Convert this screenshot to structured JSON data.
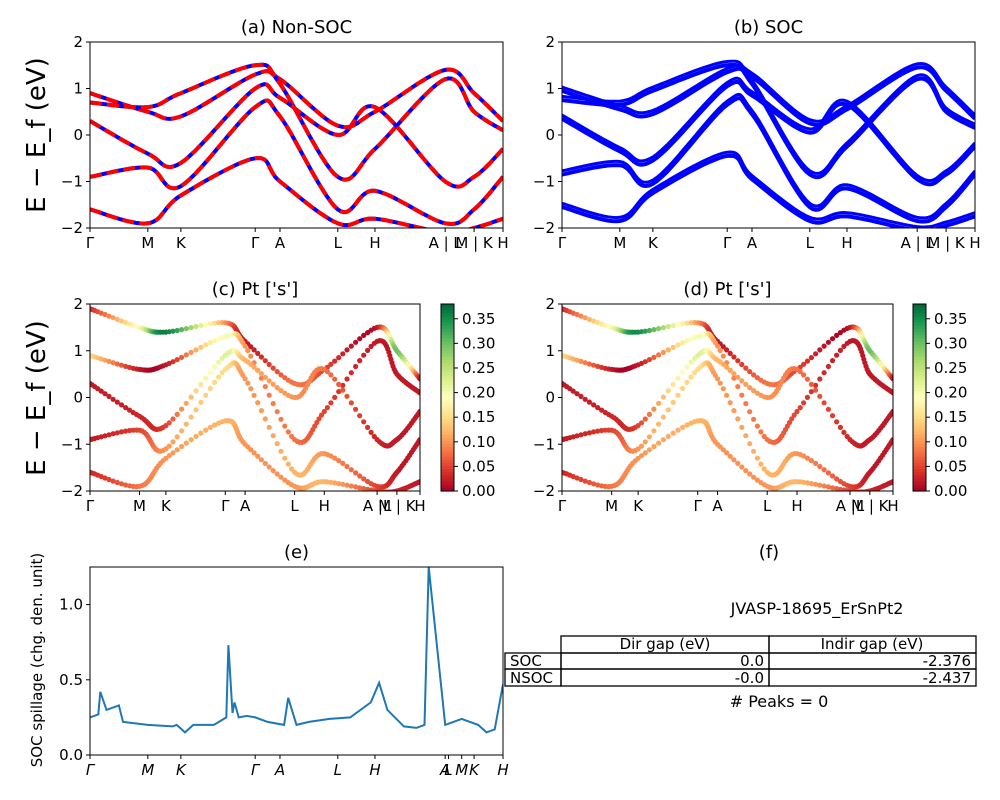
{
  "figure": {
    "ylabel_energy": "E − E_f (eV)",
    "ylabel_spillage": "SOC spillage (chg. den. unit)"
  },
  "colors": {
    "nonsoc_dash": "#ff0000",
    "nonsoc_line": "#0000ff",
    "soc_line": "#0000ff",
    "spillage": "#1f77b4",
    "colormap": [
      "#a50026",
      "#d73027",
      "#f46d43",
      "#fdae61",
      "#fee08b",
      "#ffffbf",
      "#d9ef8b",
      "#a6d96a",
      "#66bd63",
      "#1a9850",
      "#006837"
    ]
  },
  "kpath_labels": [
    "Γ",
    "M",
    "K",
    "Γ",
    "A",
    "L",
    "H",
    "A | L",
    "M | K",
    "H"
  ],
  "chart_data": [
    {
      "panel": "a",
      "type": "line",
      "title": "(a) Non-SOC",
      "ylabel": "E − E_f (eV)",
      "ylim": [
        -2,
        2
      ],
      "yticks": [
        "2",
        "1",
        "0",
        "−1",
        "−2"
      ],
      "xticks": [
        "Γ",
        "M",
        "K",
        "Γ",
        "A",
        "L",
        "H",
        "A | L",
        "M | K",
        "H"
      ],
      "x": [
        0,
        0.14,
        0.22,
        0.4,
        0.46,
        0.6,
        0.69,
        0.86,
        0.93,
        1.0
      ],
      "bands": [
        {
          "y": [
            0.9,
            0.5,
            0.4,
            1.3,
            1.2,
            0.2,
            0.5,
            1.4,
            0.9,
            0.3
          ]
        },
        {
          "y": [
            0.7,
            0.6,
            0.9,
            1.5,
            1.1,
            -0.9,
            -0.3,
            1.2,
            0.5,
            0.1
          ]
        },
        {
          "y": [
            0.3,
            -0.4,
            -0.6,
            1.0,
            0.8,
            0.0,
            0.6,
            -1.0,
            -0.9,
            -0.3
          ]
        },
        {
          "y": [
            -0.9,
            -0.7,
            -1.1,
            0.6,
            0.4,
            -1.6,
            -1.2,
            -1.9,
            -1.6,
            -0.9
          ]
        },
        {
          "y": [
            -1.6,
            -1.9,
            -1.3,
            -0.5,
            -1.0,
            -1.9,
            -1.8,
            -2.1,
            -2.0,
            -1.8
          ]
        }
      ]
    },
    {
      "panel": "b",
      "type": "line",
      "title": "(b) SOC",
      "ylim": [
        -2,
        2
      ],
      "yticks": [
        "2",
        "1",
        "0",
        "−1",
        "−2"
      ],
      "xticks": [
        "Γ",
        "M",
        "K",
        "Γ",
        "A",
        "L",
        "H",
        "A | L",
        "M | K",
        "H"
      ],
      "x": [
        0,
        0.14,
        0.22,
        0.4,
        0.46,
        0.6,
        0.69,
        0.86,
        0.93,
        1.0
      ],
      "bands": [
        {
          "y": [
            0.95,
            0.55,
            0.45,
            1.35,
            1.25,
            0.25,
            0.55,
            1.45,
            0.95,
            0.35
          ]
        },
        {
          "y": [
            0.75,
            0.65,
            0.95,
            1.5,
            1.1,
            -0.85,
            -0.25,
            1.2,
            0.5,
            0.15
          ]
        },
        {
          "y": [
            0.35,
            -0.35,
            -0.55,
            1.05,
            0.85,
            0.05,
            0.65,
            -0.95,
            -0.85,
            -0.25
          ]
        },
        {
          "y": [
            -0.85,
            -0.65,
            -1.05,
            0.65,
            0.45,
            -1.55,
            -1.15,
            -1.85,
            -1.55,
            -0.85
          ]
        },
        {
          "y": [
            -1.55,
            -1.85,
            -1.25,
            -0.45,
            -0.95,
            -1.85,
            -1.75,
            -2.05,
            -1.95,
            -1.75
          ]
        }
      ]
    },
    {
      "panel": "c",
      "type": "scatter",
      "title": "(c)  Pt ['s']",
      "ylabel": "E − E_f (eV)",
      "ylim": [
        -2,
        2
      ],
      "yticks": [
        "2",
        "1",
        "0",
        "−1",
        "−2"
      ],
      "xticks": [
        "Γ",
        "M",
        "K",
        "Γ",
        "A",
        "L",
        "H",
        "A |L",
        "M | K",
        "H"
      ],
      "colorbar": {
        "ticks": [
          "0.35",
          "0.30",
          "0.25",
          "0.20",
          "0.15",
          "0.10",
          "0.05",
          "0.00"
        ],
        "min": 0.0,
        "max": 0.38
      },
      "x": [
        0,
        0.15,
        0.23,
        0.41,
        0.47,
        0.62,
        0.71,
        0.87,
        0.93,
        1.0
      ],
      "bands": [
        {
          "y": [
            1.9,
            1.5,
            1.4,
            1.6,
            1.2,
            0.3,
            0.6,
            1.5,
            1.0,
            0.4
          ],
          "w": [
            0.03,
            0.2,
            0.36,
            0.1,
            0.02,
            0.08,
            0.05,
            0.02,
            0.3,
            0.02
          ]
        },
        {
          "y": [
            0.9,
            0.6,
            0.7,
            1.3,
            1.1,
            -0.9,
            -0.3,
            1.2,
            0.5,
            0.1
          ],
          "w": [
            0.15,
            0.02,
            0.02,
            0.2,
            0.1,
            0.08,
            0.05,
            0.02,
            0.02,
            0.02
          ]
        },
        {
          "y": [
            0.3,
            -0.4,
            -0.6,
            0.9,
            0.8,
            0.0,
            0.6,
            -0.9,
            -0.9,
            -0.3
          ],
          "w": [
            0.02,
            0.03,
            0.05,
            0.22,
            0.12,
            0.1,
            0.08,
            0.03,
            0.02,
            0.02
          ]
        },
        {
          "y": [
            -0.9,
            -0.7,
            -1.1,
            0.6,
            0.4,
            -1.6,
            -1.2,
            -1.9,
            -1.6,
            -0.9
          ],
          "w": [
            0.02,
            0.05,
            0.1,
            0.15,
            0.1,
            0.12,
            0.1,
            0.05,
            0.02,
            0.02
          ]
        },
        {
          "y": [
            -1.6,
            -1.9,
            -1.3,
            -0.5,
            -1.0,
            -1.9,
            -1.8,
            -2.0,
            -2.0,
            -1.8
          ],
          "w": [
            0.03,
            0.08,
            0.1,
            0.12,
            0.1,
            0.1,
            0.12,
            0.05,
            0.03,
            0.02
          ]
        }
      ]
    },
    {
      "panel": "d",
      "type": "scatter",
      "title": "(d) Pt ['s']",
      "ylim": [
        -2,
        2
      ],
      "yticks": [
        "2",
        "1",
        "0",
        "−1",
        "−2"
      ],
      "xticks": [
        "Γ",
        "M",
        "K",
        "Γ",
        "A",
        "L",
        "H",
        "A |L",
        "M | K",
        "H"
      ],
      "colorbar": {
        "ticks": [
          "0.35",
          "0.30",
          "0.25",
          "0.20",
          "0.15",
          "0.10",
          "0.05",
          "0.00"
        ],
        "min": 0.0,
        "max": 0.38
      },
      "x": [
        0,
        0.15,
        0.23,
        0.41,
        0.47,
        0.62,
        0.71,
        0.87,
        0.93,
        1.0
      ],
      "bands": [
        {
          "y": [
            1.9,
            1.5,
            1.4,
            1.6,
            1.2,
            0.3,
            0.6,
            1.5,
            1.0,
            0.4
          ],
          "w": [
            0.03,
            0.2,
            0.35,
            0.1,
            0.02,
            0.08,
            0.05,
            0.02,
            0.3,
            0.02
          ]
        },
        {
          "y": [
            0.9,
            0.6,
            0.7,
            1.3,
            1.1,
            -0.9,
            -0.3,
            1.2,
            0.5,
            0.1
          ],
          "w": [
            0.15,
            0.02,
            0.02,
            0.2,
            0.1,
            0.08,
            0.05,
            0.02,
            0.02,
            0.02
          ]
        },
        {
          "y": [
            0.3,
            -0.4,
            -0.6,
            0.9,
            0.8,
            0.0,
            0.6,
            -0.9,
            -0.9,
            -0.3
          ],
          "w": [
            0.02,
            0.03,
            0.05,
            0.22,
            0.12,
            0.1,
            0.08,
            0.03,
            0.02,
            0.02
          ]
        },
        {
          "y": [
            -0.9,
            -0.7,
            -1.1,
            0.6,
            0.4,
            -1.6,
            -1.2,
            -1.9,
            -1.6,
            -0.9
          ],
          "w": [
            0.02,
            0.05,
            0.1,
            0.15,
            0.1,
            0.12,
            0.1,
            0.05,
            0.02,
            0.02
          ]
        },
        {
          "y": [
            -1.6,
            -1.9,
            -1.3,
            -0.5,
            -1.0,
            -1.9,
            -1.8,
            -2.0,
            -2.0,
            -1.8
          ],
          "w": [
            0.03,
            0.08,
            0.1,
            0.12,
            0.1,
            0.1,
            0.12,
            0.05,
            0.03,
            0.02
          ]
        }
      ]
    },
    {
      "panel": "e",
      "type": "line",
      "title": "(e)",
      "ylabel": "SOC spillage (chg. den. unit)",
      "ylim": [
        0,
        1.25
      ],
      "yticks": [
        "1.0",
        "0.5",
        "0.0"
      ],
      "ytick_values": [
        1.0,
        0.5,
        0.0
      ],
      "xticks": [
        "Γ",
        "M",
        "K",
        "Γ",
        "A",
        "L",
        "H",
        "A",
        "L",
        "M",
        "K",
        "H"
      ],
      "x": [
        0,
        0.02,
        0.025,
        0.04,
        0.07,
        0.08,
        0.14,
        0.2,
        0.21,
        0.23,
        0.25,
        0.3,
        0.33,
        0.335,
        0.345,
        0.35,
        0.36,
        0.38,
        0.4,
        0.43,
        0.47,
        0.48,
        0.5,
        0.53,
        0.58,
        0.63,
        0.68,
        0.7,
        0.72,
        0.76,
        0.79,
        0.81,
        0.82,
        0.86,
        0.87,
        0.88,
        0.9,
        0.94,
        0.96,
        0.98,
        1.0
      ],
      "y": [
        0.25,
        0.27,
        0.42,
        0.3,
        0.33,
        0.22,
        0.2,
        0.19,
        0.2,
        0.15,
        0.2,
        0.2,
        0.25,
        0.73,
        0.28,
        0.35,
        0.25,
        0.26,
        0.25,
        0.22,
        0.2,
        0.38,
        0.2,
        0.22,
        0.24,
        0.25,
        0.35,
        0.48,
        0.3,
        0.19,
        0.18,
        0.2,
        1.25,
        0.2,
        0.21,
        0.22,
        0.24,
        0.2,
        0.15,
        0.17,
        0.47
      ]
    }
  ],
  "info_panel": {
    "title": "(f)",
    "material_id": "JVASP-18695_ErSnPt2",
    "table": {
      "headers": [
        "",
        "Dir gap (eV)",
        "Indir gap (eV)"
      ],
      "rows": [
        [
          "SOC",
          "0.0",
          "-2.376"
        ],
        [
          "NSOC",
          "-0.0",
          "-2.437"
        ]
      ]
    },
    "peaks_text": "# Peaks = 0"
  }
}
